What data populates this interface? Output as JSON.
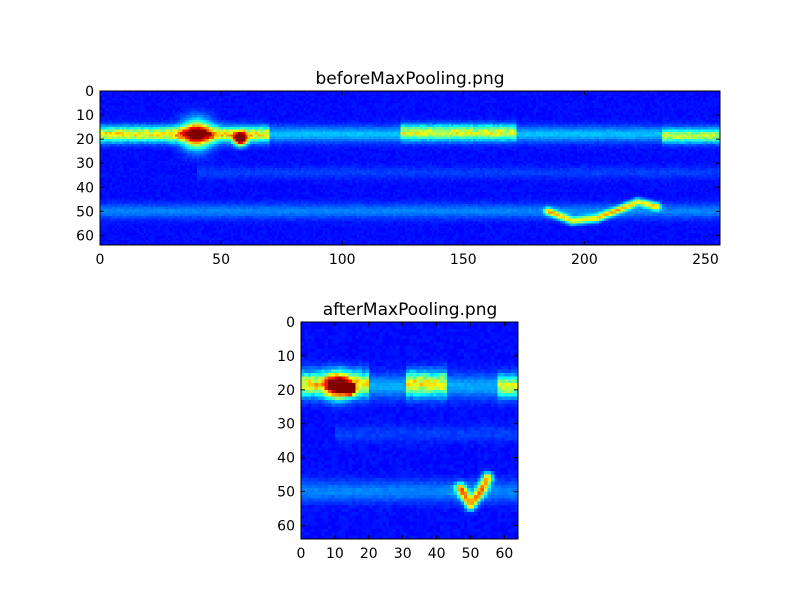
{
  "chart_data": [
    {
      "type": "heatmap",
      "title": "beforeMaxPooling.png",
      "xlim": [
        0,
        256
      ],
      "ylim": [
        64,
        0
      ],
      "x_ticks": [
        0,
        50,
        100,
        150,
        200,
        250
      ],
      "y_ticks": [
        0,
        10,
        20,
        30,
        40,
        50,
        60
      ],
      "colormap": "jet",
      "background_color": "#00008f",
      "features": [
        {
          "kind": "band",
          "y_center": 18,
          "y_halfwidth": 3.2,
          "x_start": 0,
          "x_end": 256,
          "intensity": 0.18
        },
        {
          "kind": "band",
          "y_center": 50,
          "y_halfwidth": 3.0,
          "x_start": 0,
          "x_end": 256,
          "intensity": 0.12
        },
        {
          "kind": "band",
          "y_center": 34,
          "y_halfwidth": 2.5,
          "x_start": 40,
          "x_end": 256,
          "intensity": 0.05
        },
        {
          "kind": "cluster",
          "x_start": 0,
          "x_end": 70,
          "y_center": 18,
          "y_halfwidth": 3,
          "intensity": 0.42
        },
        {
          "kind": "cluster",
          "x_start": 124,
          "x_end": 172,
          "y_center": 17,
          "y_halfwidth": 3,
          "intensity": 0.38
        },
        {
          "kind": "cluster",
          "x_start": 232,
          "x_end": 256,
          "y_center": 19,
          "y_halfwidth": 2.5,
          "intensity": 0.36
        },
        {
          "kind": "hotspot",
          "x": 40,
          "y": 18,
          "radius": 6,
          "intensity": 0.62
        },
        {
          "kind": "hotspot",
          "x": 58,
          "y": 20,
          "radius": 2.5,
          "intensity": 0.95
        },
        {
          "kind": "curve",
          "points": [
            [
              185,
              50
            ],
            [
              195,
              54
            ],
            [
              205,
              53
            ],
            [
              215,
              49
            ],
            [
              222,
              46
            ],
            [
              230,
              48
            ]
          ],
          "intensity": 0.48
        }
      ]
    },
    {
      "type": "heatmap",
      "title": "afterMaxPooling.png",
      "xlim": [
        0,
        64
      ],
      "ylim": [
        64,
        0
      ],
      "x_ticks": [
        0,
        10,
        20,
        30,
        40,
        50,
        60
      ],
      "y_ticks": [
        0,
        10,
        20,
        30,
        40,
        50,
        60
      ],
      "colormap": "jet",
      "background_color": "#00008f",
      "features": [
        {
          "kind": "band",
          "y_center": 19,
          "y_halfwidth": 3.5,
          "x_start": 0,
          "x_end": 64,
          "intensity": 0.16
        },
        {
          "kind": "band",
          "y_center": 50,
          "y_halfwidth": 3.2,
          "x_start": 0,
          "x_end": 64,
          "intensity": 0.12
        },
        {
          "kind": "band",
          "y_center": 33,
          "y_halfwidth": 2.5,
          "x_start": 10,
          "x_end": 64,
          "intensity": 0.05
        },
        {
          "kind": "cluster",
          "x_start": 0,
          "x_end": 20,
          "y_center": 18,
          "y_halfwidth": 3.5,
          "intensity": 0.45
        },
        {
          "kind": "cluster",
          "x_start": 31,
          "x_end": 43,
          "y_center": 18,
          "y_halfwidth": 3.5,
          "intensity": 0.42
        },
        {
          "kind": "cluster",
          "x_start": 58,
          "x_end": 64,
          "y_center": 19,
          "y_halfwidth": 3,
          "intensity": 0.38
        },
        {
          "kind": "hotspot",
          "x": 11,
          "y": 19,
          "radius": 3.5,
          "intensity": 0.7
        },
        {
          "kind": "hotspot",
          "x": 14.5,
          "y": 20,
          "radius": 1.4,
          "intensity": 0.9
        },
        {
          "kind": "curve",
          "points": [
            [
              47,
              49
            ],
            [
              50,
              54
            ],
            [
              53,
              50
            ],
            [
              55,
              46
            ]
          ],
          "intensity": 0.55
        }
      ]
    }
  ]
}
